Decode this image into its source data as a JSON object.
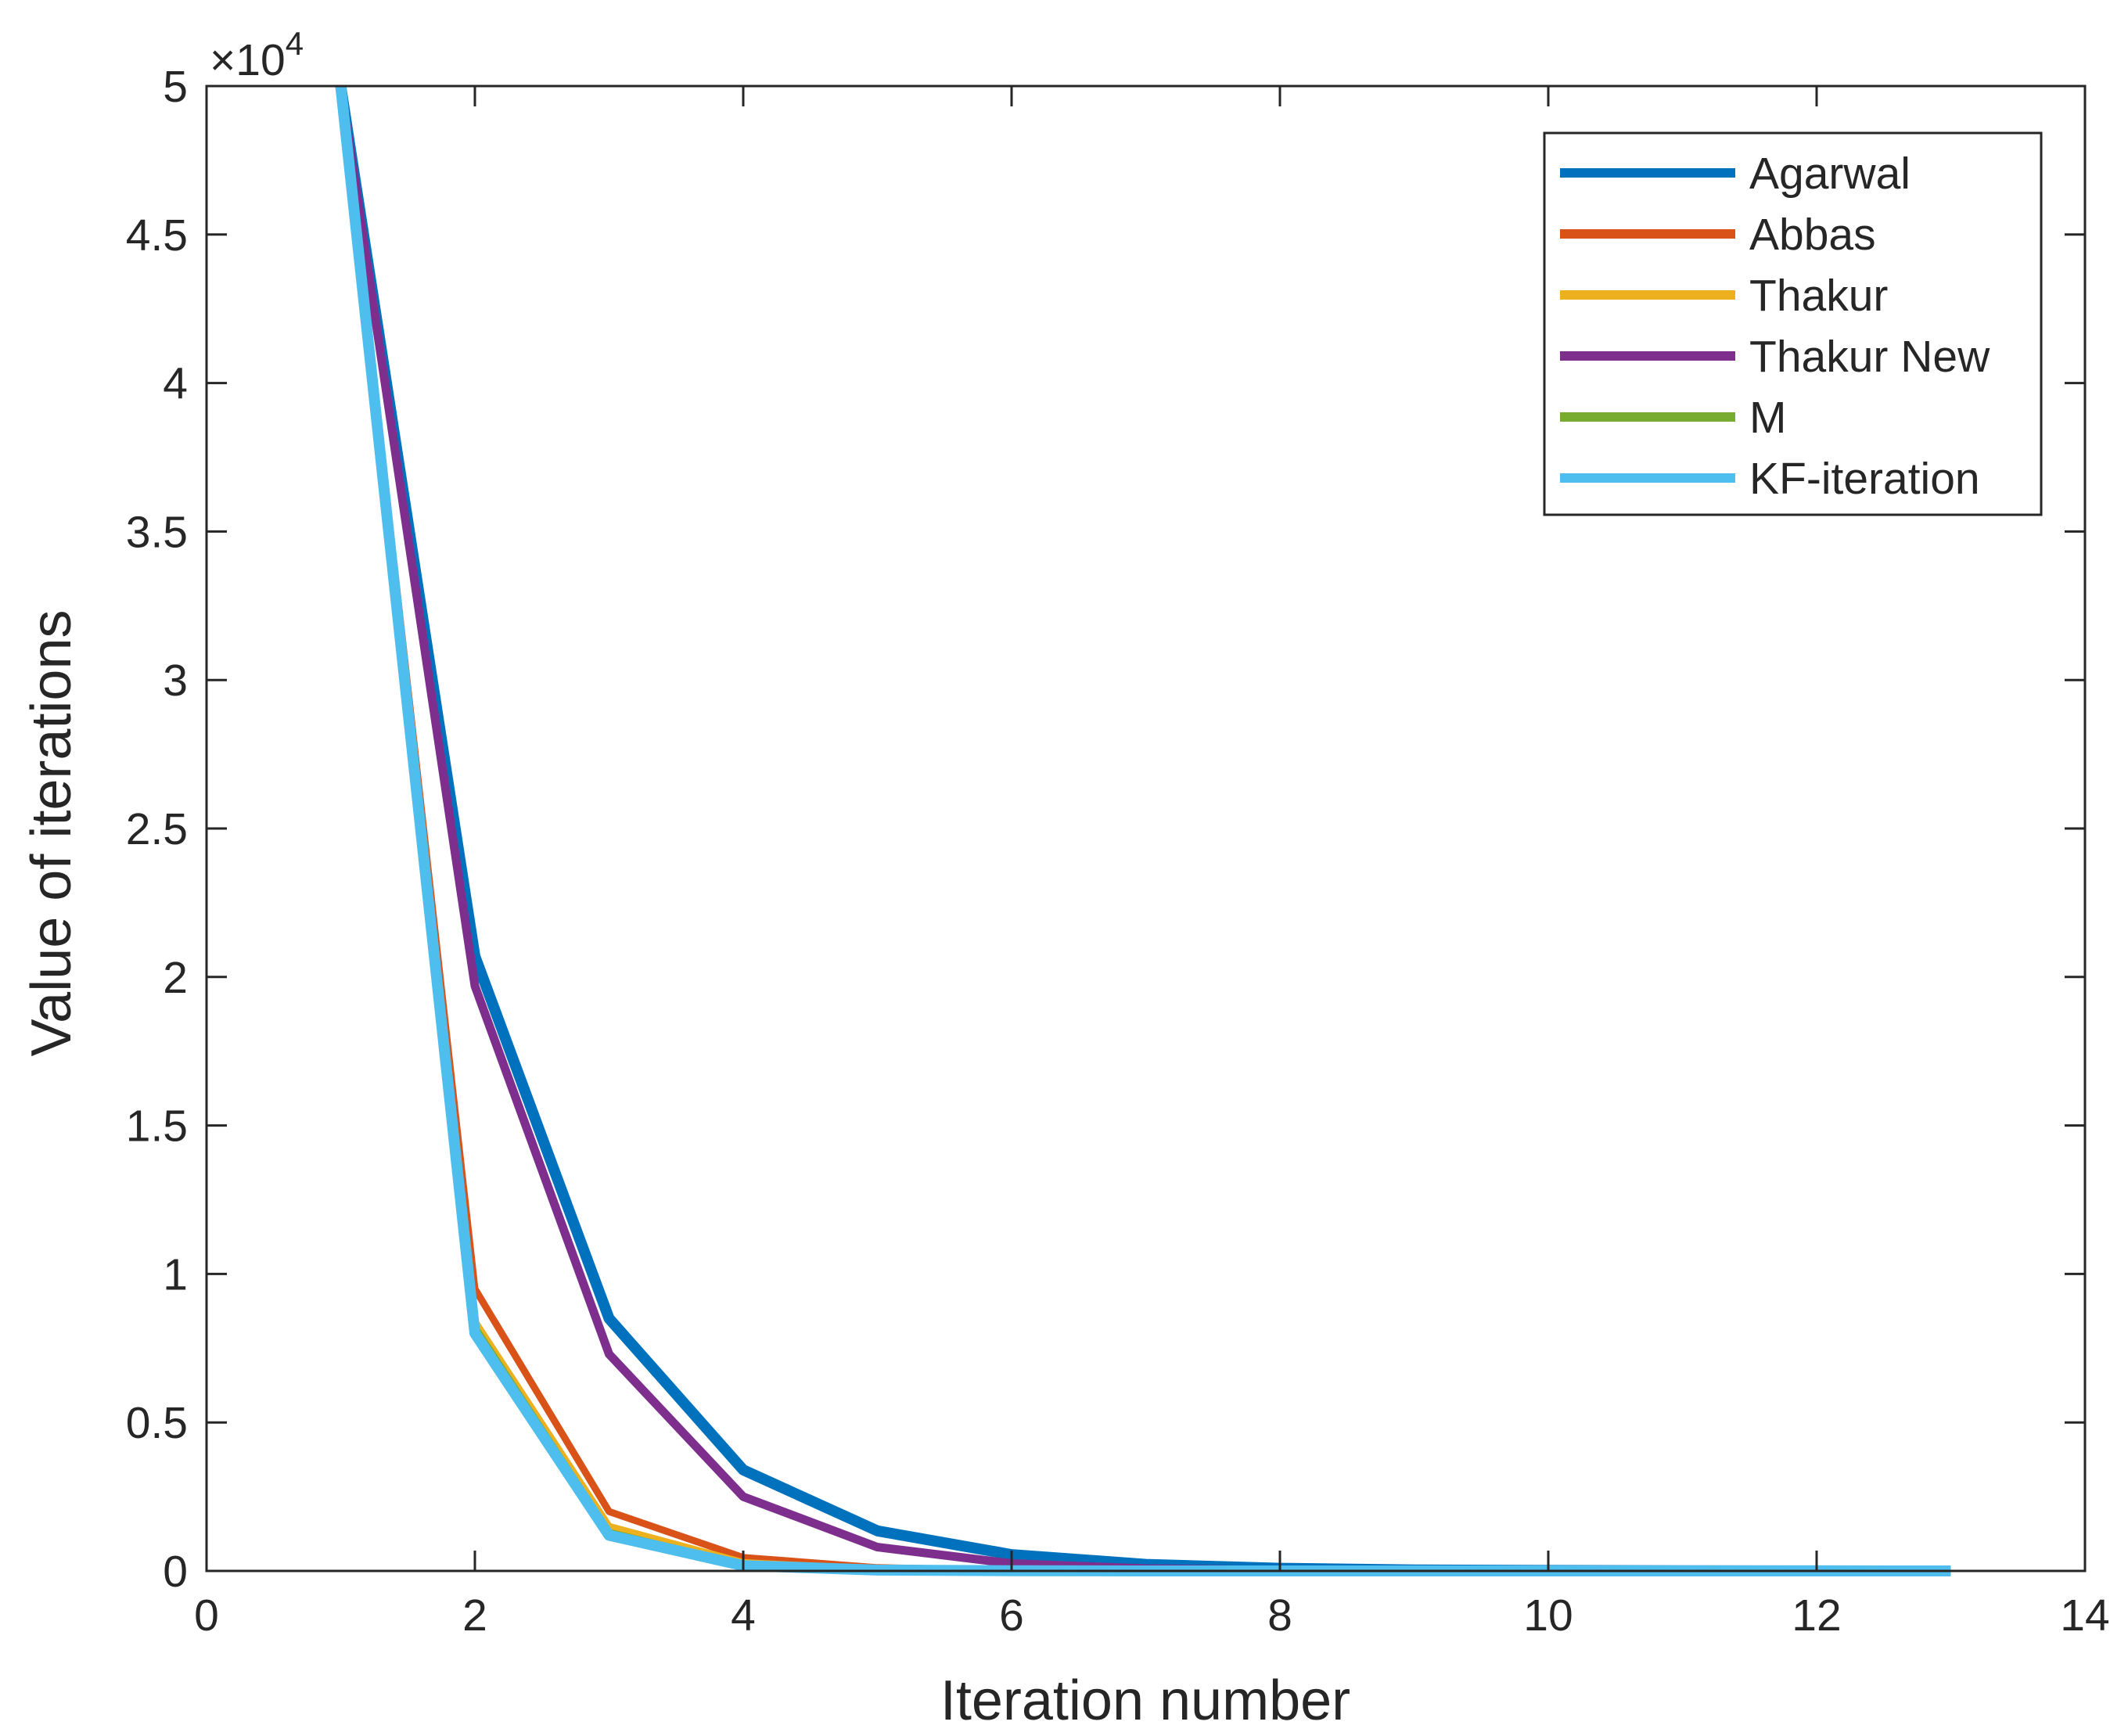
{
  "chart_data": {
    "type": "line",
    "xlabel": "Iteration number",
    "ylabel": "Value of iterations",
    "xlim": [
      0,
      14
    ],
    "ylim": [
      0,
      50000
    ],
    "xticks": [
      0,
      2,
      4,
      6,
      8,
      10,
      12,
      14
    ],
    "yticks": [
      0,
      5000,
      10000,
      15000,
      20000,
      25000,
      30000,
      35000,
      40000,
      45000,
      50000
    ],
    "ytick_labels": [
      "0",
      "0.5",
      "1",
      "1.5",
      "2",
      "2.5",
      "3",
      "3.5",
      "4",
      "4.5",
      "5"
    ],
    "y_multiplier": "×10",
    "y_multiplier_exponent": "4",
    "grid": false,
    "legend_position": "top-right",
    "x": [
      1,
      2,
      3,
      4,
      5,
      6,
      7,
      8,
      9,
      10,
      11,
      12,
      13
    ],
    "series": [
      {
        "name": "Agarwal",
        "color": "#0072BD",
        "values": [
          50000,
          20700,
          8500,
          3400,
          1350,
          550,
          220,
          90,
          35,
          15,
          6,
          2,
          1
        ]
      },
      {
        "name": "Abbas",
        "color": "#D95319",
        "values": [
          50000,
          9500,
          2000,
          450,
          110,
          30,
          8,
          2,
          1,
          0,
          0,
          0,
          0
        ]
      },
      {
        "name": "Thakur",
        "color": "#EDB120",
        "values": [
          50000,
          8400,
          1500,
          280,
          55,
          12,
          3,
          1,
          0,
          0,
          0,
          0,
          0
        ]
      },
      {
        "name": "Thakur New",
        "color": "#7E2F8E",
        "values": [
          50000,
          19700,
          7300,
          2500,
          800,
          250,
          80,
          25,
          8,
          3,
          1,
          0,
          0
        ]
      },
      {
        "name": "M",
        "color": "#77AC30",
        "values": [
          50000,
          8200,
          1300,
          200,
          35,
          6,
          1,
          0,
          0,
          0,
          0,
          0,
          0
        ]
      },
      {
        "name": "KF-iteration",
        "color": "#4DBEEE",
        "values": [
          50000,
          8000,
          1200,
          180,
          30,
          5,
          1,
          0,
          0,
          0,
          0,
          0,
          0
        ]
      }
    ]
  }
}
